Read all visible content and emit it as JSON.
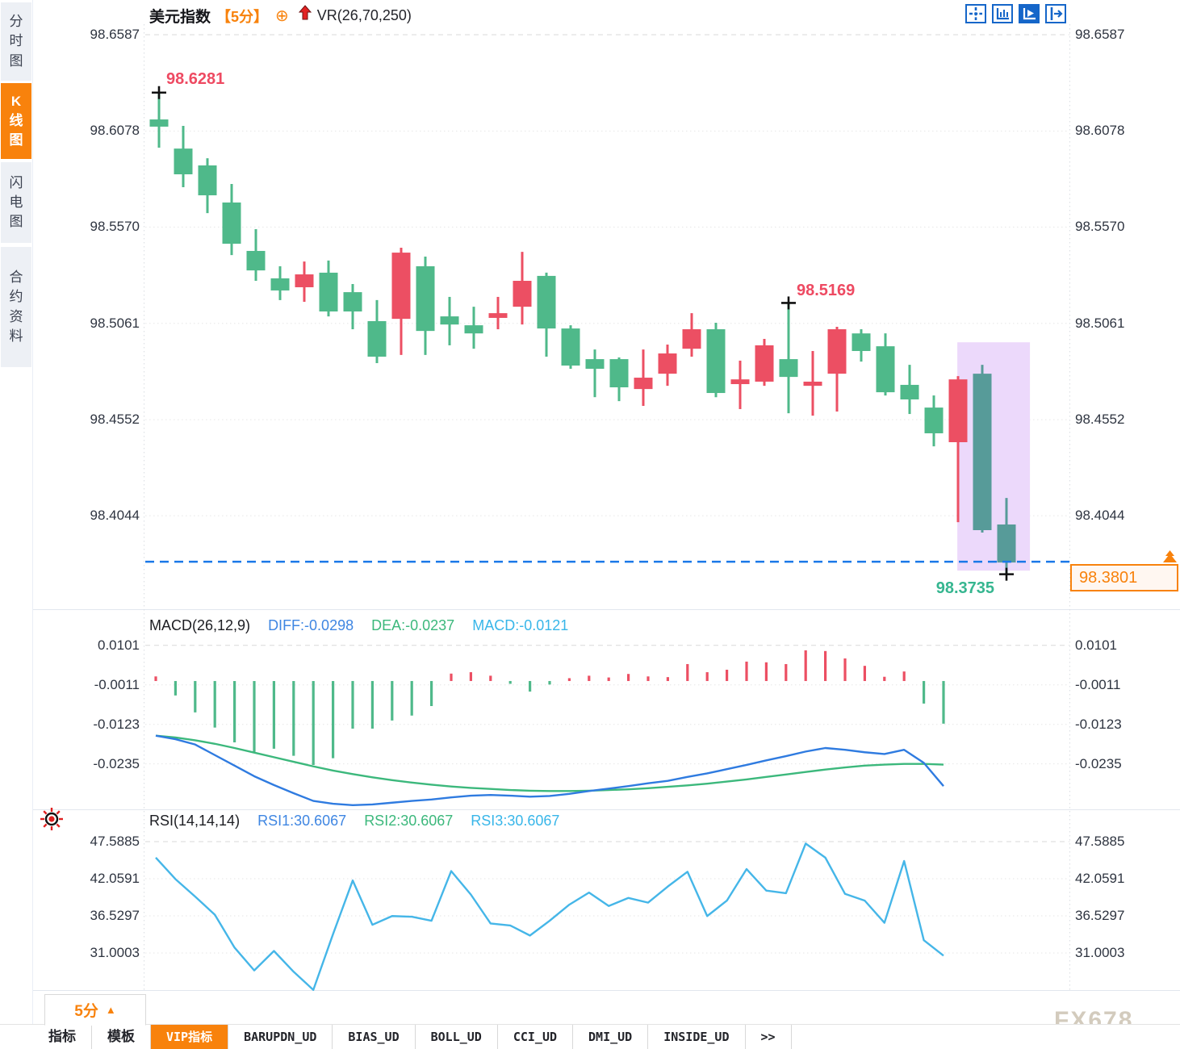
{
  "sidebar": {
    "items": [
      {
        "label": "分时图",
        "active": false
      },
      {
        "label": "K线图",
        "active": true
      },
      {
        "label": "闪电图",
        "active": false
      },
      {
        "label": "合约资料",
        "active": false
      }
    ]
  },
  "header": {
    "symbol": "美元指数",
    "period_tag": "【5分】",
    "add_icon": "⊕",
    "vr_label": "VR(26,70,250)"
  },
  "toolbar": {
    "icons": [
      {
        "name": "crosshair",
        "active": false
      },
      {
        "name": "axis-range",
        "active": false
      },
      {
        "name": "axis-play",
        "active": true
      },
      {
        "name": "pan-right",
        "active": false
      }
    ]
  },
  "main_chart": {
    "annotations": {
      "high1": "98.6281",
      "high2": "98.5169",
      "low": "98.3735"
    },
    "last_price_text": "98.3801"
  },
  "macd": {
    "title": "MACD(26,12,9)",
    "diff": "DIFF:-0.0298",
    "dea": "DEA:-0.0237",
    "macd": "MACD:-0.0121"
  },
  "rsi": {
    "title": "RSI(14,14,14)",
    "r1": "RSI1:30.6067",
    "r2": "RSI2:30.6067",
    "r3": "RSI3:30.6067"
  },
  "footer": {
    "period": "5分",
    "period_arrow": "▲",
    "tabs": [
      {
        "label": "指标",
        "active": false
      },
      {
        "label": "模板",
        "active": false
      },
      {
        "label": "VIP指标",
        "active": true
      },
      {
        "label": "BARUPDN_UD",
        "active": false
      },
      {
        "label": "BIAS_UD",
        "active": false
      },
      {
        "label": "BOLL_UD",
        "active": false
      },
      {
        "label": "CCI_UD",
        "active": false
      },
      {
        "label": "DMI_UD",
        "active": false
      },
      {
        "label": "INSIDE_UD",
        "active": false
      },
      {
        "label": ">>",
        "active": false
      }
    ],
    "watermark": "FX678"
  },
  "colors": {
    "up": "#ec4f63",
    "down": "#4fb98a",
    "highlight_candle": "#579b99",
    "zone": "#ecd9fb",
    "dashed_line": "#1a78e8",
    "accent_orange": "#f8820c",
    "diff_line": "#2f7be0",
    "dea_line": "#3cb87c",
    "rsi_line": "#45b6e8",
    "label_red": "#ee4a62",
    "label_green": "#36b690",
    "grid": "#e6e6e6"
  },
  "chart_data": [
    {
      "type": "candlestick",
      "title": "美元指数 5分 K线",
      "y_axis": {
        "tick_labels": [
          "98.6587",
          "98.6078",
          "98.5570",
          "98.5061",
          "98.4552",
          "98.4044"
        ],
        "range": [
          98.355,
          98.6587
        ]
      },
      "candles": [
        [
          98.6139,
          98.6281,
          98.599,
          98.6101
        ],
        [
          98.5985,
          98.6105,
          98.5781,
          98.5849
        ],
        [
          98.5896,
          98.5934,
          98.5644,
          98.5738
        ],
        [
          98.57,
          98.5798,
          98.5422,
          98.5482
        ],
        [
          98.5444,
          98.5559,
          98.5286,
          98.5341
        ],
        [
          98.5299,
          98.5363,
          98.5184,
          98.5235
        ],
        [
          98.5252,
          98.5388,
          98.5175,
          98.532
        ],
        [
          98.5329,
          98.5393,
          98.5098,
          98.5124
        ],
        [
          98.5226,
          98.5269,
          98.503,
          98.5124
        ],
        [
          98.5073,
          98.5184,
          98.4851,
          98.4885
        ],
        [
          98.5085,
          98.5461,
          98.4894,
          98.5435
        ],
        [
          98.5363,
          98.5414,
          98.4894,
          98.5021
        ],
        [
          98.5098,
          98.5201,
          98.4945,
          98.5055
        ],
        [
          98.5051,
          98.5149,
          98.4927,
          98.5008
        ],
        [
          98.509,
          98.5201,
          98.503,
          98.5115
        ],
        [
          98.5149,
          98.5439,
          98.5055,
          98.5286
        ],
        [
          98.5312,
          98.5329,
          98.4885,
          98.5034
        ],
        [
          98.5034,
          98.5051,
          98.4821,
          98.4838
        ],
        [
          98.4872,
          98.4923,
          98.4671,
          98.4821
        ],
        [
          98.4872,
          98.4881,
          98.465,
          98.4723
        ],
        [
          98.4714,
          98.4923,
          98.4625,
          98.4774
        ],
        [
          98.4795,
          98.4949,
          98.4731,
          98.4902
        ],
        [
          98.4927,
          98.5115,
          98.4885,
          98.503
        ],
        [
          98.503,
          98.5064,
          98.4671,
          98.4693
        ],
        [
          98.474,
          98.4864,
          98.4608,
          98.4765
        ],
        [
          98.4753,
          98.4979,
          98.4731,
          98.4945
        ],
        [
          98.4872,
          98.5169,
          98.4586,
          98.4778
        ],
        [
          98.4731,
          98.4915,
          98.4573,
          98.4753
        ],
        [
          98.4795,
          98.5043,
          98.4595,
          98.503
        ],
        [
          98.5008,
          98.503,
          98.4859,
          98.4915
        ],
        [
          98.494,
          98.5008,
          98.468,
          98.4697
        ],
        [
          98.4736,
          98.4842,
          98.4582,
          98.4659
        ],
        [
          98.4616,
          98.468,
          98.4411,
          98.448
        ],
        [
          98.4433,
          98.4782,
          98.401,
          98.4765
        ],
        [
          98.4795,
          98.4842,
          98.3955,
          98.3968
        ],
        [
          98.3998,
          98.4138,
          98.3735,
          98.3797
        ]
      ],
      "highlight_candles": [
        35,
        36
      ],
      "highlight_zone": {
        "from_bar": 32.97,
        "to_bar": 35.97,
        "price_top": 98.4961,
        "price_bottom": 98.3754
      },
      "last_price": 98.3801,
      "annotations": [
        {
          "bar": 1,
          "price": 98.6281,
          "text": "98.6281",
          "kind": "swing-high"
        },
        {
          "bar": 27,
          "price": 98.5169,
          "text": "98.5169",
          "kind": "swing-high"
        },
        {
          "bar": 36,
          "price": 98.3735,
          "text": "98.3735",
          "kind": "swing-low"
        }
      ]
    },
    {
      "type": "macd",
      "title": "MACD(26,12,9)",
      "y_axis": {
        "tick_labels": [
          "0.0101",
          "-0.0011",
          "-0.0123",
          "-0.0235"
        ],
        "range": [
          -0.0357,
          0.0112
        ]
      },
      "histogram": [
        0.0013,
        -0.0041,
        -0.0089,
        -0.0132,
        -0.0174,
        -0.0201,
        -0.0192,
        -0.0212,
        -0.0238,
        -0.0219,
        -0.0135,
        -0.0135,
        -0.0112,
        -0.0098,
        -0.0071,
        0.0021,
        0.0025,
        0.0015,
        -0.0008,
        -0.003,
        -0.001,
        0.0008,
        0.0015,
        0.001,
        0.002,
        0.0013,
        0.0011,
        0.0048,
        0.0025,
        0.0032,
        0.0055,
        0.0053,
        0.0048,
        0.0087,
        0.0085,
        0.0064,
        0.0043,
        0.0012,
        0.0027,
        -0.0064,
        -0.0121
      ],
      "diff": [
        -0.0155,
        -0.0165,
        -0.018,
        -0.021,
        -0.024,
        -0.027,
        -0.0295,
        -0.0318,
        -0.034,
        -0.0348,
        -0.0352,
        -0.035,
        -0.0345,
        -0.034,
        -0.0336,
        -0.033,
        -0.0325,
        -0.0323,
        -0.0325,
        -0.0328,
        -0.0326,
        -0.032,
        -0.0312,
        -0.0305,
        -0.0298,
        -0.029,
        -0.0283,
        -0.0272,
        -0.0262,
        -0.025,
        -0.0238,
        -0.0225,
        -0.0213,
        -0.02,
        -0.019,
        -0.0195,
        -0.0202,
        -0.0207,
        -0.0195,
        -0.0232,
        -0.0298
      ],
      "dea": [
        -0.0155,
        -0.016,
        -0.0168,
        -0.0178,
        -0.019,
        -0.0203,
        -0.0216,
        -0.0229,
        -0.0242,
        -0.0254,
        -0.0264,
        -0.0273,
        -0.0281,
        -0.0288,
        -0.0294,
        -0.0299,
        -0.0303,
        -0.0306,
        -0.0309,
        -0.0311,
        -0.0312,
        -0.0312,
        -0.0311,
        -0.0309,
        -0.0307,
        -0.0304,
        -0.03,
        -0.0296,
        -0.0291,
        -0.0285,
        -0.0279,
        -0.0272,
        -0.0265,
        -0.0258,
        -0.0251,
        -0.0245,
        -0.024,
        -0.0237,
        -0.0235,
        -0.0235,
        -0.0237
      ]
    },
    {
      "type": "rsi",
      "title": "RSI(14,14,14)",
      "y_axis": {
        "tick_labels": [
          "47.5885",
          "42.0591",
          "36.5297",
          "31.0003"
        ],
        "range": [
          25.47,
          48.19
        ]
      },
      "values": [
        45.2,
        42.0,
        39.4,
        36.7,
        31.8,
        28.4,
        31.3,
        28.2,
        25.5,
        33.8,
        41.8,
        35.2,
        36.5,
        36.4,
        35.8,
        43.2,
        39.7,
        35.4,
        35.1,
        33.6,
        35.8,
        38.2,
        40.0,
        38.0,
        39.2,
        38.5,
        40.9,
        43.1,
        36.5,
        38.8,
        43.5,
        40.3,
        39.9,
        47.3,
        45.2,
        39.8,
        38.8,
        35.5,
        44.7,
        32.9,
        30.6
      ]
    }
  ]
}
